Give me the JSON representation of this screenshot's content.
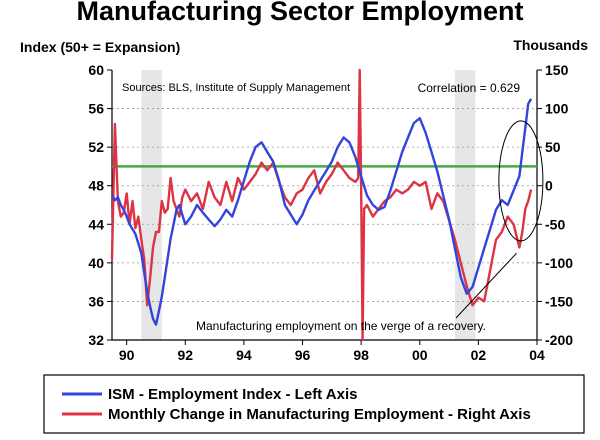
{
  "chart_data": {
    "type": "line",
    "title": "Manufacturing Sector Employment",
    "y_left_label": "Index (50+ = Expansion)",
    "y_right_label": "Thousands",
    "ylim_left": [
      32,
      60
    ],
    "ylim_right": [
      -200,
      150
    ],
    "y_left_ticks": [
      32,
      36,
      40,
      44,
      48,
      52,
      56,
      60
    ],
    "y_right_ticks": [
      -200,
      -150,
      -100,
      -50,
      0,
      50,
      100,
      150
    ],
    "xlim": [
      1989.5,
      2004.0
    ],
    "x_ticks": [
      {
        "value": 1990,
        "label": "90"
      },
      {
        "value": 1992,
        "label": "92"
      },
      {
        "value": 1994,
        "label": "94"
      },
      {
        "value": 1996,
        "label": "96"
      },
      {
        "value": 1998,
        "label": "98"
      },
      {
        "value": 2000,
        "label": "00"
      },
      {
        "value": 2002,
        "label": "02"
      },
      {
        "value": 2004,
        "label": "04"
      }
    ],
    "recessions": [
      [
        1990.5,
        1991.2
      ],
      [
        2001.2,
        2001.9
      ]
    ],
    "reference_line": {
      "axis": "left",
      "value": 50,
      "color": "#44aa44"
    },
    "grid": "horizontal dashed",
    "legend_position": "bottom",
    "series": [
      {
        "name": "ISM - Employment Index - Left Axis",
        "axis": "left",
        "color": "#3344dd",
        "x": [
          1989.5,
          1989.6,
          1989.7,
          1989.8,
          1989.9,
          1990.0,
          1990.1,
          1990.2,
          1990.3,
          1990.4,
          1990.5,
          1990.6,
          1990.7,
          1990.8,
          1990.9,
          1991.0,
          1991.1,
          1991.2,
          1991.3,
          1991.4,
          1991.5,
          1991.6,
          1991.7,
          1991.8,
          1991.9,
          1992.0,
          1992.2,
          1992.4,
          1992.6,
          1992.8,
          1993.0,
          1993.2,
          1993.4,
          1993.6,
          1993.8,
          1994.0,
          1994.2,
          1994.4,
          1994.6,
          1994.8,
          1995.0,
          1995.2,
          1995.4,
          1995.6,
          1995.8,
          1996.0,
          1996.2,
          1996.4,
          1996.6,
          1996.8,
          1997.0,
          1997.2,
          1997.4,
          1997.6,
          1997.8,
          1998.0,
          1998.2,
          1998.4,
          1998.6,
          1998.8,
          1999.0,
          1999.2,
          1999.4,
          1999.6,
          1999.8,
          2000.0,
          2000.2,
          2000.4,
          2000.6,
          2000.8,
          2001.0,
          2001.2,
          2001.4,
          2001.6,
          2001.8,
          2002.0,
          2002.2,
          2002.4,
          2002.6,
          2002.8,
          2003.0,
          2003.2,
          2003.4,
          2003.5,
          2003.6,
          2003.7,
          2003.8
        ],
        "values": [
          47.0,
          46.5,
          46.8,
          46.0,
          45.5,
          44.8,
          44.0,
          43.5,
          43.0,
          42.0,
          41.0,
          39.0,
          37.0,
          35.5,
          34.2,
          33.6,
          35.0,
          36.5,
          38.5,
          40.5,
          42.5,
          44.0,
          45.5,
          46.0,
          45.0,
          44.0,
          44.8,
          46.0,
          45.2,
          44.5,
          43.8,
          44.5,
          45.5,
          44.8,
          46.5,
          48.5,
          50.5,
          52.0,
          52.5,
          51.5,
          50.5,
          48.5,
          46.0,
          45.0,
          44.0,
          45.0,
          46.5,
          47.5,
          48.5,
          49.5,
          50.5,
          52.0,
          53.0,
          52.5,
          51.0,
          49.0,
          47.0,
          46.0,
          45.5,
          45.8,
          47.5,
          49.5,
          51.5,
          53.0,
          54.5,
          55.0,
          53.5,
          51.5,
          49.5,
          47.0,
          44.5,
          41.5,
          38.5,
          36.8,
          37.5,
          39.5,
          41.5,
          43.5,
          45.5,
          46.5,
          46.0,
          47.5,
          49.0,
          51.5,
          54.0,
          56.5,
          57.0
        ]
      },
      {
        "name": "Monthly Change in Manufacturing Employment - Right Axis",
        "axis": "right",
        "color": "#dd3344",
        "x": [
          1989.5,
          1989.6,
          1989.7,
          1989.8,
          1989.9,
          1990.0,
          1990.1,
          1990.2,
          1990.3,
          1990.4,
          1990.5,
          1990.6,
          1990.7,
          1990.8,
          1990.9,
          1991.0,
          1991.1,
          1991.2,
          1991.3,
          1991.4,
          1991.5,
          1991.6,
          1991.7,
          1991.8,
          1991.9,
          1992.0,
          1992.2,
          1992.4,
          1992.6,
          1992.8,
          1993.0,
          1993.2,
          1993.4,
          1993.6,
          1993.8,
          1994.0,
          1994.2,
          1994.4,
          1994.6,
          1994.8,
          1995.0,
          1995.2,
          1995.4,
          1995.6,
          1995.8,
          1996.0,
          1996.2,
          1996.4,
          1996.6,
          1996.8,
          1997.0,
          1997.2,
          1997.4,
          1997.6,
          1997.8,
          1997.9,
          1997.95,
          1998.0,
          1998.05,
          1998.1,
          1998.2,
          1998.4,
          1998.6,
          1998.8,
          1999.0,
          1999.2,
          1999.4,
          1999.6,
          1999.8,
          2000.0,
          2000.2,
          2000.4,
          2000.6,
          2000.8,
          2001.0,
          2001.2,
          2001.4,
          2001.6,
          2001.8,
          2002.0,
          2002.2,
          2002.4,
          2002.6,
          2002.8,
          2003.0,
          2003.2,
          2003.4,
          2003.5,
          2003.6,
          2003.7,
          2003.8
        ],
        "values": [
          -95,
          80,
          -20,
          -40,
          -35,
          -10,
          -50,
          -20,
          -55,
          -40,
          -70,
          -95,
          -155,
          -120,
          -80,
          -60,
          -60,
          -20,
          -35,
          -30,
          10,
          -20,
          -30,
          -40,
          -15,
          -5,
          -20,
          -10,
          -30,
          5,
          -15,
          -25,
          5,
          -20,
          10,
          -5,
          5,
          15,
          30,
          20,
          30,
          5,
          -15,
          -25,
          -10,
          -5,
          10,
          20,
          -10,
          5,
          15,
          30,
          20,
          10,
          5,
          10,
          150,
          5,
          -200,
          -30,
          -25,
          -40,
          -30,
          -20,
          -15,
          -5,
          -10,
          -5,
          5,
          0,
          5,
          -30,
          -10,
          -20,
          -45,
          -70,
          -100,
          -130,
          -155,
          -145,
          -150,
          -110,
          -70,
          -60,
          -40,
          -50,
          -80,
          -60,
          -30,
          -20,
          -5
        ]
      }
    ]
  },
  "annotations": {
    "sources": "Sources:  BLS, Institute of Supply Management",
    "correlation": "Correlation = 0.629",
    "recovery_note": "Manufacturing employment on the verge of a recovery."
  },
  "legend": [
    {
      "label": "ISM - Employment Index - Left Axis",
      "color": "#3344dd"
    },
    {
      "label": "Monthly Change in Manufacturing Employment - Right Axis",
      "color": "#dd3344"
    }
  ]
}
